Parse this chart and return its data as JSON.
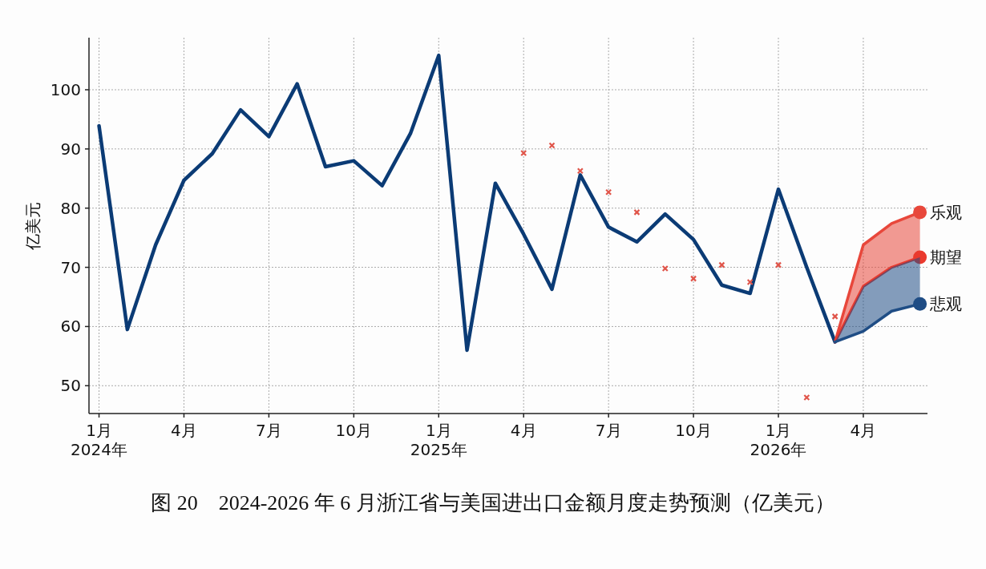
{
  "chart_data": {
    "type": "line",
    "title": "图 20　2024-2026 年 6 月浙江省与美国进出口金额月度走势预测（亿美元）",
    "ylabel": "亿美元",
    "xlim": [
      "2023-12-21",
      "2026-06-09"
    ],
    "ylim": [
      45.3,
      108.8
    ],
    "xticks": [
      {
        "value": "2024-01",
        "label": "1月\n2024年"
      },
      {
        "value": "2024-04",
        "label": "4月"
      },
      {
        "value": "2024-07",
        "label": "7月"
      },
      {
        "value": "2024-10",
        "label": "10月"
      },
      {
        "value": "2025-01",
        "label": "1月\n2025年"
      },
      {
        "value": "2025-04",
        "label": "4月"
      },
      {
        "value": "2025-07",
        "label": "7月"
      },
      {
        "value": "2025-10",
        "label": "10月"
      },
      {
        "value": "2026-01",
        "label": "1月\n2026年"
      },
      {
        "value": "2026-04",
        "label": "4月"
      }
    ],
    "yticks": [
      50,
      60,
      70,
      80,
      90,
      100
    ],
    "grid": true,
    "legend": false,
    "series": [
      {
        "color": "#0b3b75",
        "line_style": "solid",
        "marker": "none",
        "x": [
          "2024-01",
          "2024-02",
          "2024-03",
          "2024-04",
          "2024-05",
          "2024-06",
          "2024-07",
          "2024-08",
          "2024-09",
          "2024-10",
          "2024-11",
          "2024-12",
          "2025-01",
          "2025-02",
          "2025-03",
          "2025-04",
          "2025-05",
          "2025-06",
          "2025-07",
          "2025-08",
          "2025-09",
          "2025-10",
          "2025-11",
          "2025-12",
          "2026-01",
          "2026-02",
          "2026-03"
        ],
        "values": [
          93.9,
          59.5,
          73.8,
          84.7,
          89.2,
          96.6,
          92.1,
          101,
          87,
          88,
          83.8,
          92.6,
          105.8,
          56,
          84.2,
          75.6,
          66.3,
          85.6,
          76.8,
          74.3,
          79,
          74.7,
          67,
          65.6,
          83.2,
          70,
          57.4
        ]
      },
      {
        "type": "scatter",
        "color": "#e0554a",
        "marker": "cross",
        "x": [
          "2025-04",
          "2025-05",
          "2025-06",
          "2025-07",
          "2025-08",
          "2025-09",
          "2025-10",
          "2025-11",
          "2025-12",
          "2026-01",
          "2026-02",
          "2026-03"
        ],
        "values": [
          89.3,
          90.6,
          86.3,
          82.7,
          79.3,
          69.8,
          68.1,
          70.4,
          67.5,
          70.4,
          48,
          61.7
        ]
      },
      {
        "name": "乐观",
        "color": "#e8473b",
        "line_style": "solid",
        "marker": "none",
        "x": [
          "2026-03",
          "2026-04",
          "2026-05",
          "2026-06"
        ],
        "values": [
          57.4,
          73.8,
          77.4,
          79.3
        ],
        "upper": [
          57.4,
          73.8,
          77.4,
          79.3
        ],
        "lower": [
          57.4,
          66.8,
          70,
          71.7
        ]
      },
      {
        "name": "期望",
        "color": "#ea3a2e",
        "line_style": "solid",
        "marker": "none",
        "x": [
          "2026-03",
          "2026-04",
          "2026-05",
          "2026-06"
        ],
        "values": [
          57.4,
          66.8,
          70,
          71.7
        ]
      },
      {
        "name": "悲观",
        "color": "#1f4d85",
        "line_style": "solid",
        "marker": "none",
        "x": [
          "2026-03",
          "2026-04",
          "2026-05",
          "2026-06"
        ],
        "values": [
          57.4,
          59.2,
          62.6,
          63.8
        ],
        "upper": [
          57.4,
          66.8,
          70,
          71.7
        ],
        "lower": [
          57.4,
          59.2,
          62.6,
          63.8
        ]
      }
    ]
  }
}
